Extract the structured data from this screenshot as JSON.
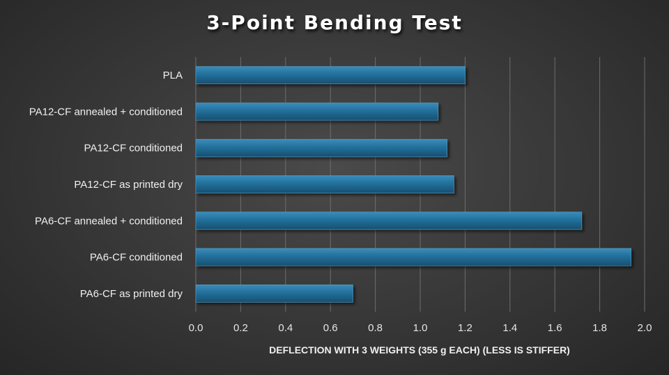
{
  "chart_data": {
    "type": "bar",
    "orientation": "horizontal",
    "title": "3-Point Bending Test",
    "xlabel": "DEFLECTION WITH 3 WEIGHTS (355 g EACH) (LESS IS STIFFER)",
    "ylabel": "",
    "xlim": [
      0,
      2.0
    ],
    "xticks": [
      "0.0",
      "0.2",
      "0.4",
      "0.6",
      "0.8",
      "1.0",
      "1.2",
      "1.4",
      "1.6",
      "1.8",
      "2.0"
    ],
    "categories": [
      "PLA",
      "PA12-CF annealed + conditioned",
      "PA12-CF conditioned",
      "PA12-CF as printed dry",
      "PA6-CF annealed + conditioned",
      "PA6-CF conditioned",
      "PA6-CF as printed dry"
    ],
    "values": [
      1.2,
      1.08,
      1.12,
      1.15,
      1.72,
      1.94,
      0.7
    ],
    "grid": true,
    "legend": "none",
    "bar_color": "#1f6a93"
  }
}
